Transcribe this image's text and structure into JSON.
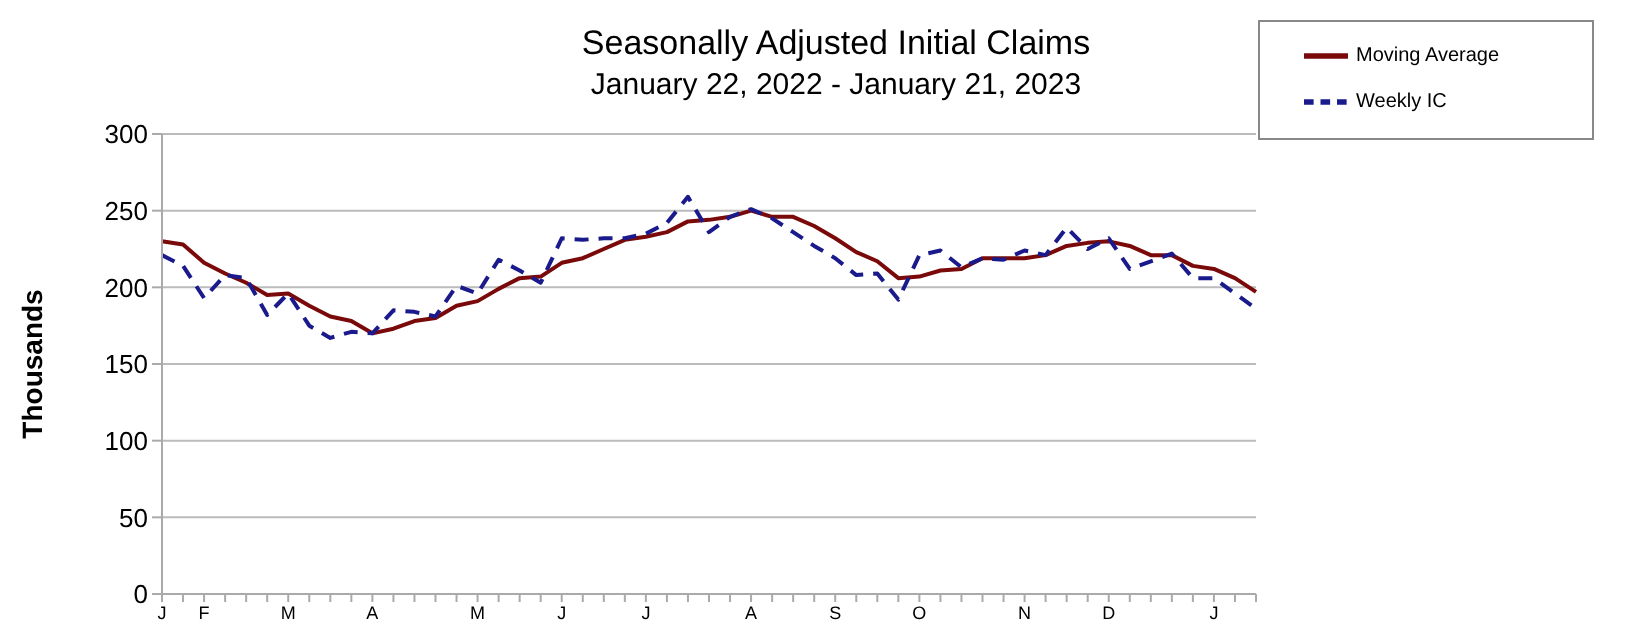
{
  "chart_data": {
    "type": "line",
    "title": "Seasonally Adjusted Initial Claims",
    "subtitle": "January 22, 2022 - January 21, 2023",
    "ylabel": "Thousands",
    "categories": [
      "J",
      null,
      "F",
      null,
      null,
      null,
      "M",
      null,
      null,
      null,
      "A",
      null,
      null,
      null,
      null,
      "M",
      null,
      null,
      null,
      "J",
      null,
      null,
      null,
      "J",
      null,
      null,
      null,
      null,
      "A",
      null,
      null,
      null,
      "S",
      null,
      null,
      null,
      "O",
      null,
      null,
      null,
      null,
      "N",
      null,
      null,
      null,
      "D",
      null,
      null,
      null,
      null,
      "J",
      null,
      null
    ],
    "series": [
      {
        "name": "Moving Average",
        "color": "#7a0a0a",
        "line_style": "solid",
        "values": [
          230,
          228,
          216,
          209,
          203,
          195,
          196,
          188,
          181,
          178,
          170,
          173,
          178,
          180,
          188,
          191,
          199,
          206,
          207,
          216,
          219,
          225,
          231,
          233,
          236,
          243,
          244,
          246,
          250,
          246,
          246,
          240,
          232,
          223,
          217,
          206,
          207,
          211,
          212,
          219,
          219,
          219,
          221,
          227,
          229,
          230,
          227,
          221,
          221,
          214,
          212,
          206,
          197
        ]
      },
      {
        "name": "Weekly IC",
        "color": "#1a1a8c",
        "line_style": "dashed",
        "values": [
          221,
          214,
          193,
          208,
          206,
          182,
          196,
          175,
          167,
          171,
          170,
          185,
          184,
          181,
          201,
          196,
          218,
          211,
          203,
          232,
          231,
          232,
          232,
          235,
          242,
          259,
          236,
          246,
          251,
          245,
          236,
          227,
          219,
          208,
          209,
          192,
          221,
          224,
          213,
          219,
          218,
          224,
          221,
          239,
          225,
          232,
          212,
          217,
          222,
          206,
          206,
          196,
          186
        ]
      }
    ],
    "ylim": [
      0,
      300
    ],
    "yticks": [
      0,
      50,
      100,
      150,
      200,
      250,
      300
    ],
    "grid": "y",
    "legend": "top right",
    "marker": "none"
  }
}
